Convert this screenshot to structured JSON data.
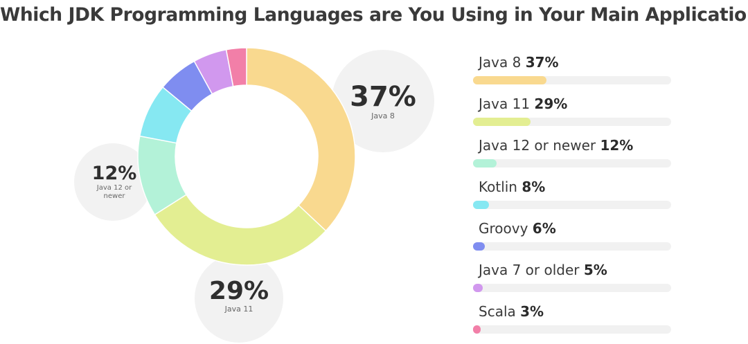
{
  "title": "Which JDK Programming Languages are You Using in Your Main Application?",
  "chart_data": {
    "type": "pie",
    "title": "Which JDK Programming Languages are You Using in Your Main Application?",
    "unit": "%",
    "slices": [
      {
        "label": "Java 8",
        "value": 37,
        "color": "#f9d98f"
      },
      {
        "label": "Java 11",
        "value": 29,
        "color": "#e3ee92"
      },
      {
        "label": "Java 12 or newer",
        "value": 12,
        "color": "#b3f2d8"
      },
      {
        "label": "Kotlin",
        "value": 8,
        "color": "#86e8f2"
      },
      {
        "label": "Groovy",
        "value": 6,
        "color": "#7f8df0"
      },
      {
        "label": "Java 7 or older",
        "value": 5,
        "color": "#d198ee"
      },
      {
        "label": "Scala",
        "value": 3,
        "color": "#f27fa8"
      }
    ]
  },
  "callouts": [
    {
      "pct": "37%",
      "label": "Java 8"
    },
    {
      "pct": "29%",
      "label": "Java 11"
    },
    {
      "pct": "12%",
      "label_lines": [
        "Java 12 or",
        "newer"
      ]
    }
  ],
  "legend": [
    {
      "label": "Java 8",
      "pct": "37%"
    },
    {
      "label": "Java 11",
      "pct": "29%"
    },
    {
      "label": "Java 12 or newer",
      "pct": "12%"
    },
    {
      "label": "Kotlin",
      "pct": "8%"
    },
    {
      "label": "Groovy",
      "pct": "6%"
    },
    {
      "label": "Java 7 or older",
      "pct": "5%"
    },
    {
      "label": "Scala",
      "pct": "3%"
    }
  ]
}
